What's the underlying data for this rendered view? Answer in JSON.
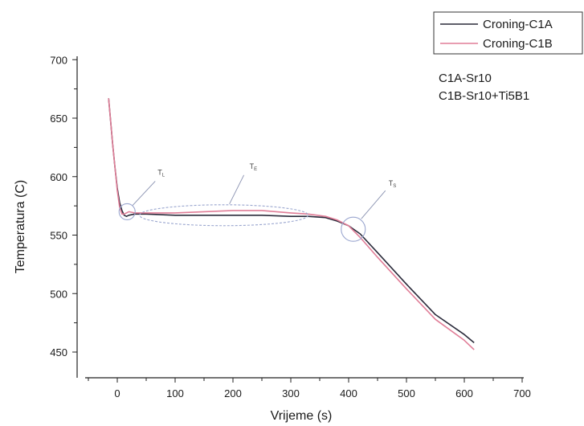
{
  "chart_data": {
    "type": "line",
    "title": "",
    "xlabel": "Vrijeme (s)",
    "ylabel": "Temperatura (C)",
    "xlim": [
      -50,
      700
    ],
    "ylim": [
      440,
      700
    ],
    "xticks": [
      0,
      100,
      200,
      300,
      400,
      500,
      600,
      700
    ],
    "yticks": [
      450,
      500,
      550,
      600,
      650,
      700
    ],
    "grid": false,
    "legend_position": "top-right",
    "series": [
      {
        "name": "Croning-C1A",
        "color": "#2a2a3a",
        "x": [
          -15,
          -12,
          -8,
          -4,
          0,
          4,
          8,
          12,
          16,
          20,
          30,
          50,
          100,
          150,
          200,
          250,
          300,
          330,
          360,
          380,
          400,
          420,
          450,
          500,
          550,
          600,
          617
        ],
        "y": [
          667,
          650,
          628,
          608,
          590,
          578,
          571,
          567,
          566,
          567,
          568,
          568,
          567,
          567,
          567,
          567,
          566,
          566,
          565,
          562,
          558,
          551,
          535,
          508,
          482,
          465,
          458
        ]
      },
      {
        "name": "Croning-C1B",
        "color": "#e07d97",
        "x": [
          -15,
          -12,
          -8,
          -4,
          0,
          4,
          8,
          12,
          16,
          20,
          30,
          50,
          100,
          150,
          200,
          250,
          300,
          330,
          360,
          380,
          400,
          420,
          450,
          500,
          550,
          600,
          617
        ],
        "y": [
          667,
          650,
          628,
          608,
          588,
          574,
          568,
          568,
          569,
          570,
          569,
          569,
          569,
          570,
          571,
          571,
          569,
          568,
          566,
          563,
          558,
          548,
          531,
          504,
          478,
          460,
          452
        ]
      }
    ],
    "annotations": [
      {
        "label": "TL",
        "type": "circle",
        "x": 17,
        "y": 570
      },
      {
        "label": "TE",
        "type": "ellipse",
        "x": 180,
        "y": 567
      },
      {
        "label": "TS",
        "type": "circle",
        "x": 408,
        "y": 555
      }
    ]
  },
  "notes": [
    "C1A-Sr10",
    "C1B-Sr10+Ti5B1"
  ]
}
